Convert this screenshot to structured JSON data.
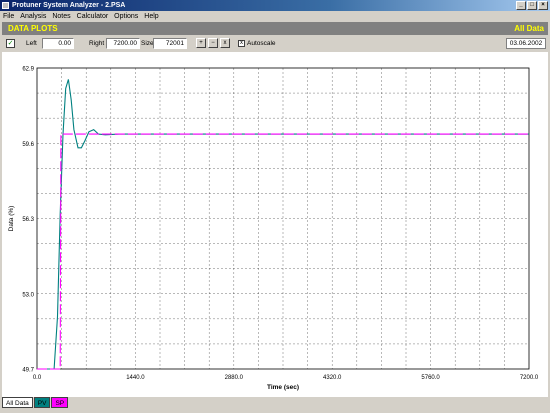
{
  "window": {
    "title": "Protuner System Analyzer - 2.PSA",
    "min": "_",
    "max": "□",
    "close": "×"
  },
  "menu": [
    "File",
    "Analysis",
    "Notes",
    "Calculator",
    "Options",
    "Help"
  ],
  "header": {
    "left": "DATA PLOTS",
    "right": "All Data"
  },
  "toolbar": {
    "check": "✓",
    "left_label": "Left",
    "left_value": "0.00",
    "right_label": "Right",
    "right_value": "7200.00",
    "size_label": "Size",
    "size_value": "72001",
    "zoom_in": "+",
    "zoom_out": "−",
    "zoom_reset": "x",
    "autoscale_label": "Autoscale",
    "autoscale_checked": "x",
    "date": "03.06.2002"
  },
  "tabs": [
    {
      "label": "All Data",
      "color": "#ffffff"
    },
    {
      "label": "PV",
      "color": "#008080"
    },
    {
      "label": "SP",
      "color": "#ff00ff"
    }
  ],
  "chart_data": {
    "type": "line",
    "xlabel": "Time (sec)",
    "ylabel": "Data (%)",
    "xlim": [
      0,
      7200
    ],
    "ylim": [
      49.7,
      62.9
    ],
    "xticks": [
      "0.0",
      "1440.0",
      "2880.0",
      "4320.0",
      "5760.0",
      "7200.0"
    ],
    "yticks": [
      "62.9",
      "59.6",
      "56.3",
      "53.0",
      "49.7"
    ],
    "grid": true,
    "series": [
      {
        "name": "PV",
        "color": "#008080",
        "x": [
          0,
          250,
          300,
          340,
          380,
          420,
          460,
          500,
          540,
          600,
          650,
          700,
          760,
          830,
          900,
          1000,
          1200,
          2000,
          4000,
          7200
        ],
        "y": [
          49.7,
          49.7,
          52.0,
          56.5,
          60.0,
          62.0,
          62.4,
          61.5,
          60.2,
          59.4,
          59.4,
          59.7,
          60.1,
          60.2,
          60.0,
          59.97,
          60.0,
          60.0,
          60.0,
          60.0
        ]
      },
      {
        "name": "SP",
        "color": "#ff00ff",
        "x": [
          0,
          340,
          350,
          7200
        ],
        "y": [
          49.7,
          49.7,
          60.0,
          60.0
        ]
      }
    ]
  }
}
